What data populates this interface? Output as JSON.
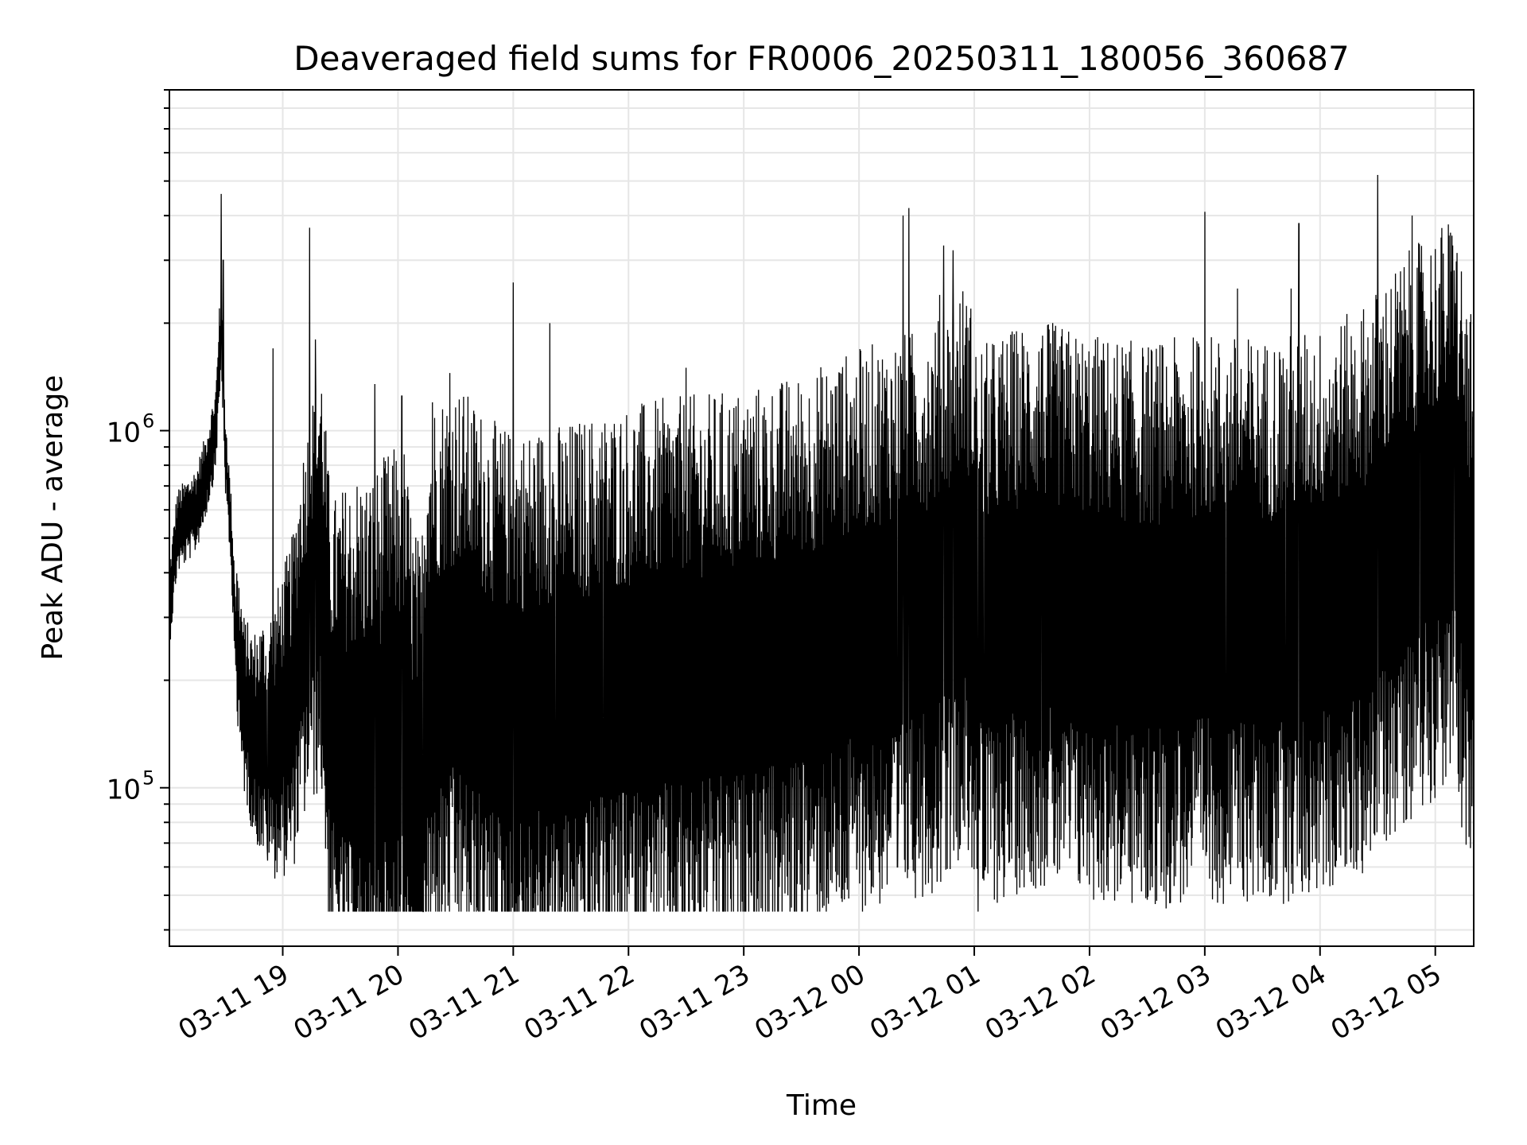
{
  "chart_data": {
    "type": "line",
    "title": "Deaveraged field sums for FR0006_20250311_180056_360687",
    "xlabel": "Time",
    "ylabel": "Peak ADU - average",
    "y_scale": "log",
    "ylim": [
      36000,
      9000000
    ],
    "xlim": [
      "03-11 18:01",
      "03-12 05:20"
    ],
    "x_ticks": [
      "03-11 19",
      "03-11 20",
      "03-11 21",
      "03-11 22",
      "03-11 23",
      "03-12 00",
      "03-12 01",
      "03-12 02",
      "03-12 03",
      "03-12 04",
      "03-12 05"
    ],
    "y_ticks": [
      {
        "base": "10",
        "exp": "5",
        "value": 100000
      },
      {
        "base": "10",
        "exp": "6",
        "value": 1000000
      }
    ],
    "grid": true,
    "line_color": "#000000",
    "grid_color": "#e6e6e6",
    "series": [
      {
        "anchors": [
          [
            "03-11 18:01",
            320000
          ],
          [
            "03-11 18:05",
            520000
          ],
          [
            "03-11 18:10",
            560000
          ],
          [
            "03-11 18:15",
            600000
          ],
          [
            "03-11 18:20",
            750000
          ],
          [
            "03-11 18:25",
            1000000
          ],
          [
            "03-11 18:28",
            1900000
          ],
          [
            "03-11 18:30",
            900000
          ],
          [
            "03-11 18:33",
            520000
          ],
          [
            "03-11 18:36",
            250000
          ],
          [
            "03-11 18:40",
            170000
          ],
          [
            "03-11 18:45",
            140000
          ],
          [
            "03-11 18:55",
            135000
          ],
          [
            "03-11 19:05",
            170000
          ],
          [
            "03-11 19:10",
            260000
          ],
          [
            "03-11 19:15",
            330000
          ],
          [
            "03-11 19:20",
            400000
          ],
          [
            "03-11 19:25",
            140000
          ],
          [
            "03-11 19:35",
            130000
          ],
          [
            "03-11 19:45",
            120000
          ],
          [
            "03-11 19:55",
            140000
          ],
          [
            "03-11 20:03",
            150000
          ],
          [
            "03-11 20:08",
            90000
          ],
          [
            "03-11 20:12",
            75000
          ],
          [
            "03-11 20:15",
            190000
          ],
          [
            "03-11 20:30",
            220000
          ],
          [
            "03-11 20:50",
            170000
          ],
          [
            "03-11 21:00",
            160000
          ],
          [
            "03-11 21:30",
            170000
          ],
          [
            "03-11 22:00",
            190000
          ],
          [
            "03-11 22:30",
            200000
          ],
          [
            "03-11 23:00",
            210000
          ],
          [
            "03-11 23:30",
            230000
          ],
          [
            "03-11 23:50",
            260000
          ],
          [
            "03-12 00:15",
            290000
          ],
          [
            "03-12 00:40",
            320000
          ],
          [
            "03-12 00:55",
            420000
          ],
          [
            "03-12 01:05",
            280000
          ],
          [
            "03-12 01:30",
            330000
          ],
          [
            "03-12 02:00",
            300000
          ],
          [
            "03-12 02:30",
            280000
          ],
          [
            "03-12 03:00",
            300000
          ],
          [
            "03-12 03:30",
            290000
          ],
          [
            "03-12 04:00",
            310000
          ],
          [
            "03-12 04:20",
            350000
          ],
          [
            "03-12 04:45",
            500000
          ],
          [
            "03-12 05:10",
            650000
          ],
          [
            "03-12 05:20",
            300000
          ]
        ],
        "spikes": [
          [
            "03-11 18:28",
            4600000
          ],
          [
            "03-11 18:29",
            3000000
          ],
          [
            "03-11 18:27",
            2200000
          ],
          [
            "03-11 18:55",
            1700000
          ],
          [
            "03-11 19:14",
            3700000
          ],
          [
            "03-11 19:17",
            1800000
          ],
          [
            "03-11 19:48",
            1350000
          ],
          [
            "03-11 20:02",
            1250000
          ],
          [
            "03-11 20:18",
            1200000
          ],
          [
            "03-11 20:27",
            1450000
          ],
          [
            "03-11 21:00",
            2600000
          ],
          [
            "03-11 21:19",
            2000000
          ],
          [
            "03-11 22:30",
            1500000
          ],
          [
            "03-11 23:50",
            1450000
          ],
          [
            "03-12 00:23",
            4000000
          ],
          [
            "03-12 00:26",
            4200000
          ],
          [
            "03-12 00:42",
            2400000
          ],
          [
            "03-12 00:44",
            3300000
          ],
          [
            "03-12 00:49",
            3200000
          ],
          [
            "03-12 01:35",
            1700000
          ],
          [
            "03-12 03:00",
            4100000
          ],
          [
            "03-12 03:17",
            2500000
          ],
          [
            "03-12 03:45",
            2500000
          ],
          [
            "03-12 03:49",
            3800000
          ],
          [
            "03-12 04:30",
            5200000
          ],
          [
            "03-12 04:48",
            4000000
          ],
          [
            "03-12 04:52",
            2600000
          ],
          [
            "03-12 05:10",
            2000000
          ],
          [
            "03-12 05:14",
            1900000
          ]
        ],
        "dips": [
          [
            "03-11 20:09",
            42000
          ],
          [
            "03-11 20:13",
            43000
          ],
          [
            "03-11 23:49",
            57000
          ],
          [
            "03-12 01:02",
            44000
          ],
          [
            "03-12 01:05",
            55000
          ],
          [
            "03-12 01:38",
            60000
          ],
          [
            "03-12 02:21",
            60000
          ],
          [
            "03-12 02:41",
            60000
          ],
          [
            "03-12 03:11",
            60000
          ],
          [
            "03-12 03:42",
            60000
          ],
          [
            "03-12 04:10",
            68000
          ],
          [
            "03-11 18:52",
            68000
          ],
          [
            "03-11 21:22",
            58000
          ],
          [
            "03-11 21:47",
            58000
          ],
          [
            "03-12 00:20",
            60000
          ]
        ]
      }
    ]
  }
}
